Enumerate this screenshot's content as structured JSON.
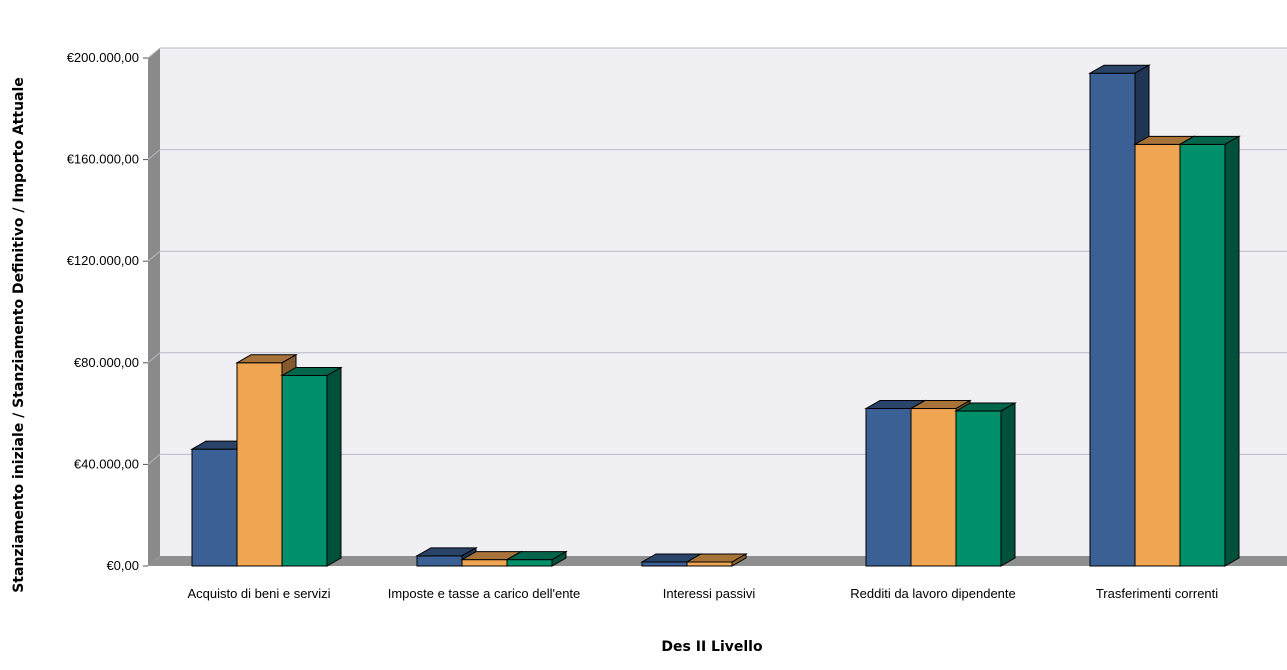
{
  "chart_data": {
    "type": "bar",
    "title": "",
    "xlabel": "Des II Livello",
    "ylabel": "Stanziamento iniziale / Stanziamento Definitivo / Importo Attuale",
    "ylim": [
      0,
      200000
    ],
    "yticks": [
      "€0,00",
      "€40.000,00",
      "€80.000,00",
      "€120.000,00",
      "€160.000,00",
      "€200.000,00"
    ],
    "ytick_values": [
      0,
      40000,
      80000,
      120000,
      160000,
      200000
    ],
    "grid": true,
    "categories": [
      "Acquisto di beni e servizi",
      "Imposte e tasse a carico dell'ente",
      "Interessi passivi",
      "Redditi da lavoro dipendente",
      "Trasferimenti correnti"
    ],
    "series": [
      {
        "color": "#3b6096",
        "values": [
          46000,
          4000,
          200,
          62000,
          194000
        ]
      },
      {
        "color": "#f0a552",
        "values": [
          80000,
          2500,
          100,
          62000,
          166000
        ]
      },
      {
        "color": "#00916b",
        "values": [
          75000,
          2500,
          0,
          61000,
          166000
        ]
      }
    ]
  }
}
